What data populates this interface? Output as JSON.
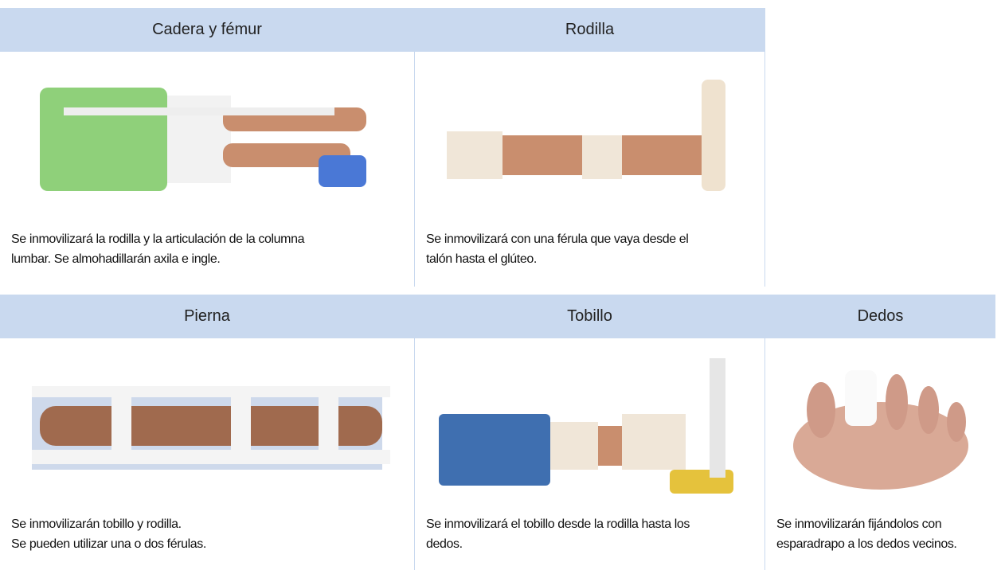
{
  "table": {
    "rows": [
      [
        {
          "heading": "Cadera y fémur",
          "lines": [
            "Se inmovilizará la rodilla y la articulación de la columna",
            "lumbar. Se almohadillarán axila e ingle."
          ]
        },
        {
          "heading": "Rodilla",
          "lines": [
            "Se inmovilizará con una férula que vaya desde el",
            "talón hasta el glúteo."
          ]
        }
      ],
      [
        {
          "heading": "Pierna",
          "lines": [
            "Se inmovilizarán tobillo y rodilla.",
            "Se pueden utilizar una o dos férulas."
          ]
        },
        {
          "heading": "Tobillo",
          "lines": [
            "Se inmovilizará el tobillo desde la rodilla hasta los",
            "dedos."
          ]
        },
        {
          "heading": "Dedos",
          "lines": [
            "Se inmovilizarán fijándolos con",
            "esparadrapo a los dedos vecinos."
          ]
        }
      ]
    ]
  }
}
